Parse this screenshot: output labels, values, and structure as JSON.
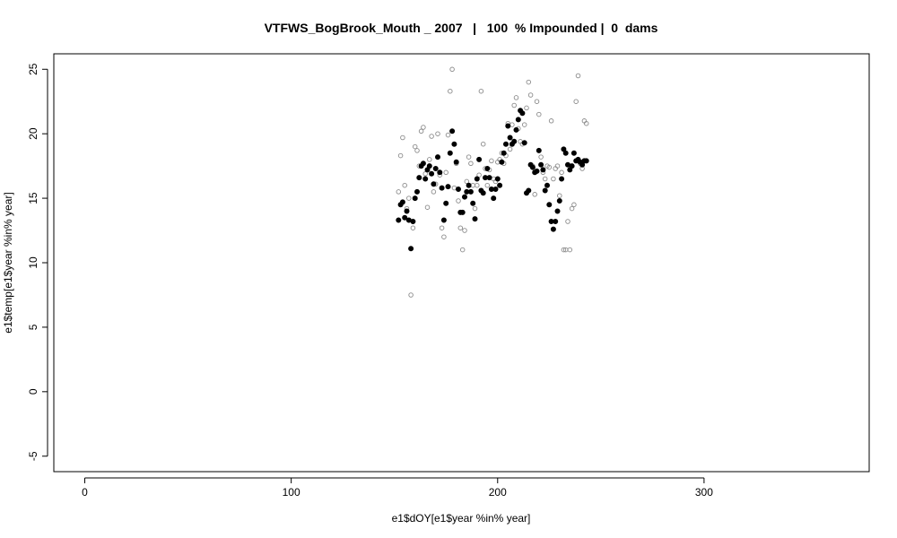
{
  "chart_data": {
    "type": "scatter",
    "title": "VTFWS_BogBrook_Mouth _ 2007   |   100  % Impounded |  0  dams",
    "xlabel": "e1$dOY[e1$year %in% year]",
    "ylabel": "e1$temp[e1$year %in% year]",
    "xlim": [
      -15,
      380
    ],
    "ylim": [
      -6.2,
      26.2
    ],
    "x_ticks": [
      0,
      100,
      200,
      300
    ],
    "y_ticks": [
      -5,
      0,
      5,
      10,
      15,
      20,
      25
    ],
    "grid": false,
    "colors": {
      "open_series": "#8c8c8c",
      "filled_series": "#000000"
    },
    "series": [
      {
        "marker": "open-circle",
        "x": [
          152,
          153,
          154,
          155,
          156,
          157,
          158,
          159,
          160,
          161,
          162,
          163,
          164,
          165,
          166,
          167,
          168,
          169,
          170,
          171,
          172,
          173,
          174,
          175,
          176,
          177,
          178,
          179,
          180,
          181,
          182,
          183,
          184,
          185,
          186,
          187,
          188,
          189,
          190,
          191,
          192,
          193,
          194,
          195,
          196,
          197,
          198,
          199,
          200,
          201,
          202,
          203,
          204,
          205,
          206,
          207,
          208,
          209,
          210,
          211,
          212,
          213,
          214,
          215,
          216,
          217,
          218,
          219,
          220,
          221,
          222,
          223,
          224,
          225,
          226,
          227,
          228,
          229,
          230,
          231,
          232,
          233,
          234,
          235,
          236,
          237,
          238,
          239,
          240,
          241,
          242,
          243
        ],
        "y": [
          15.5,
          18.3,
          19.7,
          16.0,
          14.2,
          15.0,
          7.5,
          12.7,
          19.0,
          18.7,
          17.5,
          20.2,
          20.5,
          16.9,
          14.3,
          18.0,
          19.8,
          15.5,
          16.1,
          20.0,
          16.8,
          12.7,
          12.0,
          17.0,
          19.9,
          23.3,
          25.0,
          15.8,
          17.7,
          14.8,
          12.7,
          11.0,
          12.5,
          16.3,
          18.2,
          17.7,
          16.0,
          14.2,
          16.0,
          16.8,
          23.3,
          19.2,
          17.3,
          16.0,
          17.2,
          17.9,
          16.5,
          16.3,
          17.8,
          18.0,
          18.5,
          17.7,
          18.3,
          20.8,
          18.8,
          20.7,
          22.2,
          22.8,
          20.4,
          19.4,
          19.2,
          20.7,
          22.0,
          24.0,
          23.0,
          17.5,
          15.3,
          22.5,
          21.5,
          18.2,
          17.0,
          16.5,
          17.5,
          17.4,
          21.0,
          16.5,
          17.3,
          17.5,
          15.2,
          17.0,
          11.0,
          11.0,
          13.2,
          11.0,
          14.2,
          14.5,
          22.5,
          24.5,
          17.7,
          17.3,
          21.0,
          20.8
        ]
      },
      {
        "marker": "filled-circle",
        "x": [
          152,
          153,
          154,
          155,
          156,
          157,
          158,
          159,
          160,
          161,
          162,
          163,
          164,
          165,
          166,
          167,
          168,
          169,
          170,
          171,
          172,
          173,
          174,
          175,
          176,
          177,
          178,
          179,
          180,
          181,
          182,
          183,
          184,
          185,
          186,
          187,
          188,
          189,
          190,
          191,
          192,
          193,
          194,
          195,
          196,
          197,
          198,
          199,
          200,
          201,
          202,
          203,
          204,
          205,
          206,
          207,
          208,
          209,
          210,
          211,
          212,
          213,
          214,
          215,
          216,
          217,
          218,
          219,
          220,
          221,
          222,
          223,
          224,
          225,
          226,
          227,
          228,
          229,
          230,
          231,
          232,
          233,
          234,
          235,
          236,
          237,
          238,
          239,
          240,
          241,
          242,
          243
        ],
        "y": [
          13.3,
          14.5,
          14.7,
          13.5,
          14.0,
          13.3,
          11.1,
          13.2,
          15.0,
          15.5,
          16.6,
          17.5,
          17.7,
          16.5,
          17.2,
          17.5,
          16.9,
          16.1,
          17.3,
          18.2,
          17.0,
          15.8,
          13.3,
          14.6,
          15.9,
          18.5,
          20.2,
          19.2,
          17.8,
          15.7,
          13.9,
          13.9,
          15.1,
          15.5,
          16.0,
          15.5,
          14.6,
          13.4,
          16.5,
          18.0,
          15.6,
          15.4,
          16.6,
          17.3,
          16.6,
          15.7,
          15.0,
          15.7,
          16.5,
          16.0,
          17.8,
          18.5,
          19.2,
          20.6,
          19.7,
          19.2,
          19.4,
          20.3,
          21.1,
          21.8,
          21.6,
          19.3,
          15.4,
          15.6,
          17.6,
          17.4,
          17.0,
          17.1,
          18.7,
          17.6,
          17.2,
          15.6,
          16.0,
          14.5,
          13.2,
          12.6,
          13.2,
          14.0,
          14.8,
          16.5,
          18.8,
          18.5,
          17.6,
          17.2,
          17.5,
          18.5,
          17.9,
          18.0,
          17.8,
          17.6,
          17.9,
          17.9
        ]
      }
    ]
  }
}
